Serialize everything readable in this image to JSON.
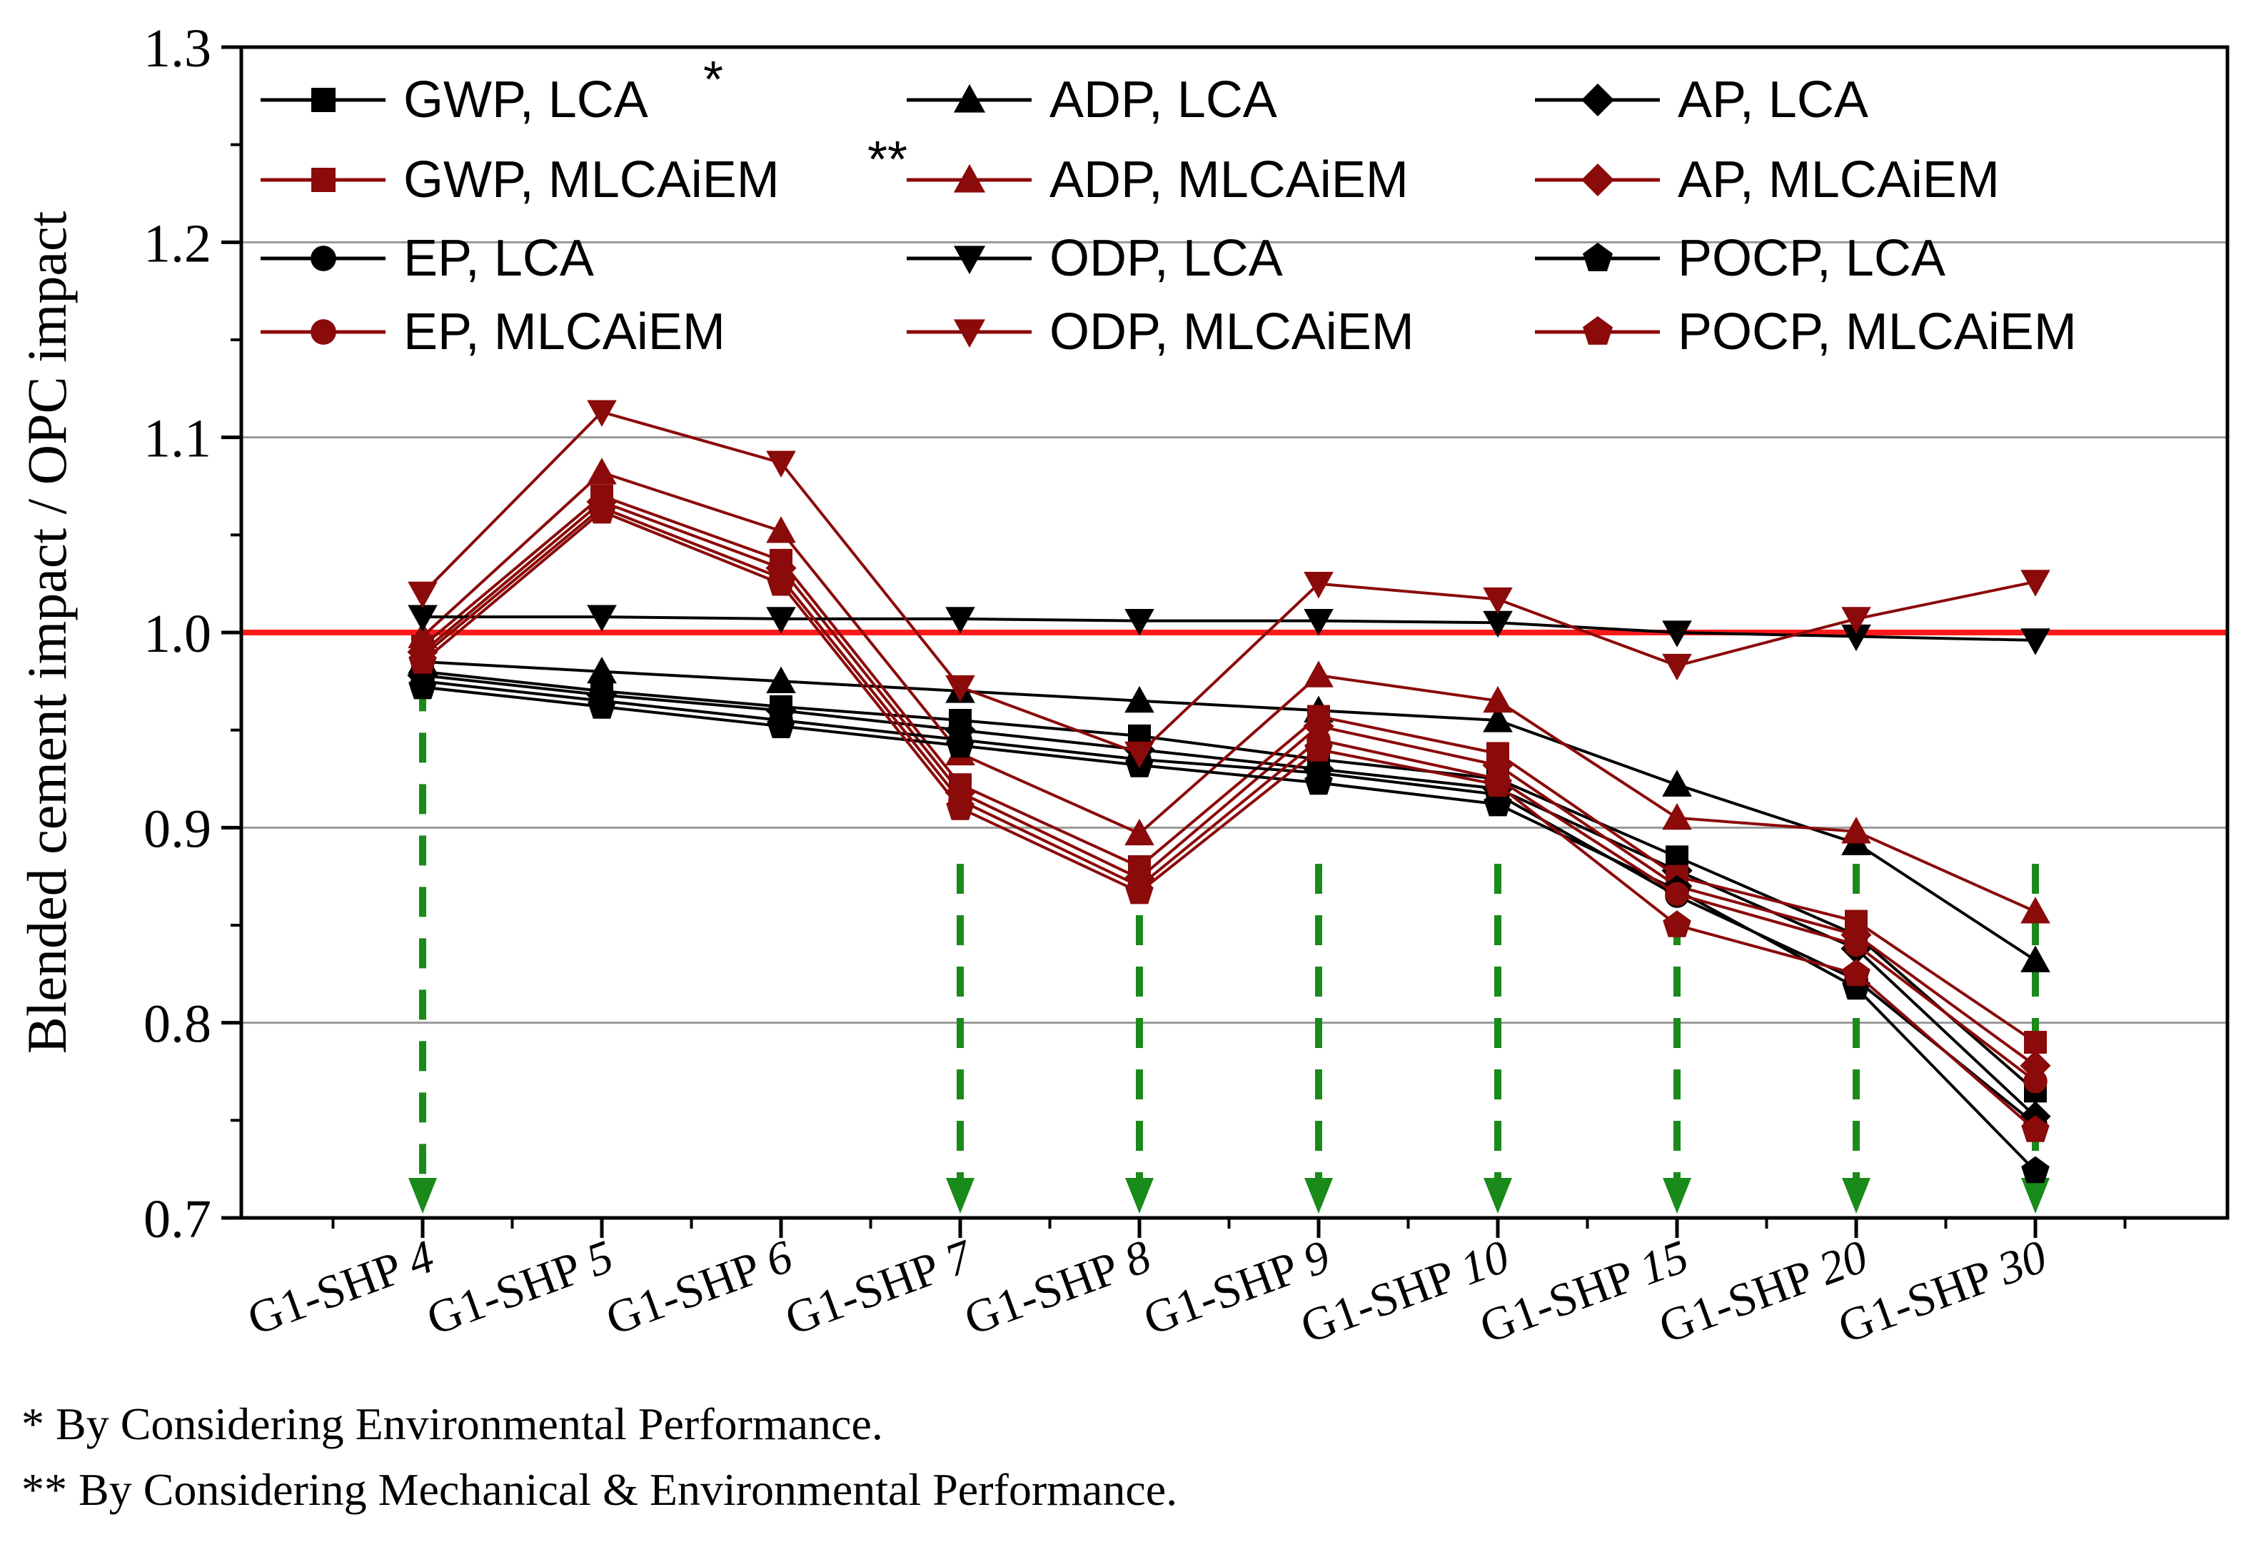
{
  "chart_data": {
    "type": "line",
    "title": "",
    "xlabel": "",
    "ylabel": "Blended cement impact / OPC impact",
    "ylim": [
      0.7,
      1.3
    ],
    "yticks": [
      "0.7",
      "0.8",
      "0.9",
      "1.0",
      "1.1",
      "1.2",
      "1.3"
    ],
    "grid": "horizontal",
    "legend_position": "top",
    "reference_line": {
      "y": 1.0,
      "color": "#ff1a1a"
    },
    "guide_arrows_at": [
      "G1-SHP 4",
      "G1-SHP 7",
      "G1-SHP 8",
      "G1-SHP 9",
      "G1-SHP 10",
      "G1-SHP 15",
      "G1-SHP 20",
      "G1-SHP 30"
    ],
    "categories": [
      "G1-SHP 4",
      "G1-SHP 5",
      "G1-SHP 6",
      "G1-SHP 7",
      "G1-SHP 8",
      "G1-SHP 9",
      "G1-SHP 10",
      "G1-SHP 15",
      "G1-SHP 20",
      "G1-SHP 30"
    ],
    "category_parts": [
      {
        "base": "G1-SHP",
        "num": "4"
      },
      {
        "base": "G1-SHP",
        "num": "5"
      },
      {
        "base": "G1-SHP",
        "num": "6"
      },
      {
        "base": "G1-SHP",
        "num": "7"
      },
      {
        "base": "G1-SHP",
        "num": "8"
      },
      {
        "base": "G1-SHP",
        "num": "9"
      },
      {
        "base": "G1-SHP",
        "num": "10"
      },
      {
        "base": "G1-SHP",
        "num": "15"
      },
      {
        "base": "G1-SHP",
        "num": "20"
      },
      {
        "base": "G1-SHP",
        "num": "30"
      }
    ],
    "series": [
      {
        "name": "GWP, LCA",
        "color": "#000000",
        "marker": "square",
        "note": "*",
        "values": [
          0.98,
          0.97,
          0.962,
          0.955,
          0.947,
          0.935,
          0.925,
          0.885,
          0.845,
          0.765
        ]
      },
      {
        "name": "ADP, LCA",
        "color": "#000000",
        "marker": "triangle-up",
        "values": [
          0.985,
          0.98,
          0.975,
          0.97,
          0.965,
          0.96,
          0.955,
          0.922,
          0.892,
          0.832
        ]
      },
      {
        "name": "AP, LCA",
        "color": "#000000",
        "marker": "diamond",
        "values": [
          0.978,
          0.968,
          0.96,
          0.95,
          0.94,
          0.93,
          0.92,
          0.878,
          0.838,
          0.752
        ]
      },
      {
        "name": "GWP, MLCAiEM",
        "color": "#8b0a0a",
        "marker": "square",
        "note": "**",
        "values": [
          0.993,
          1.07,
          1.037,
          0.922,
          0.88,
          0.957,
          0.938,
          0.875,
          0.852,
          0.79
        ]
      },
      {
        "name": "ADP, MLCAiEM",
        "color": "#8b0a0a",
        "marker": "triangle-up",
        "values": [
          0.998,
          1.082,
          1.052,
          0.938,
          0.897,
          0.978,
          0.965,
          0.905,
          0.898,
          0.857
        ]
      },
      {
        "name": "AP, MLCAiEM",
        "color": "#8b0a0a",
        "marker": "diamond",
        "values": [
          0.99,
          1.067,
          1.033,
          0.918,
          0.874,
          0.952,
          0.932,
          0.87,
          0.845,
          0.778
        ]
      },
      {
        "name": "EP, LCA",
        "color": "#000000",
        "marker": "circle",
        "values": [
          0.975,
          0.965,
          0.955,
          0.945,
          0.935,
          0.928,
          0.917,
          0.865,
          0.822,
          0.748
        ]
      },
      {
        "name": "ODP, LCA",
        "color": "#000000",
        "marker": "triangle-down",
        "values": [
          1.008,
          1.008,
          1.007,
          1.007,
          1.006,
          1.006,
          1.005,
          1.0,
          0.998,
          0.996
        ]
      },
      {
        "name": "POCP, LCA",
        "color": "#000000",
        "marker": "pentagon",
        "values": [
          0.972,
          0.962,
          0.952,
          0.942,
          0.932,
          0.923,
          0.912,
          0.868,
          0.818,
          0.724
        ]
      },
      {
        "name": "EP, MLCAiEM",
        "color": "#8b0a0a",
        "marker": "circle",
        "values": [
          0.988,
          1.064,
          1.028,
          0.914,
          0.87,
          0.945,
          0.925,
          0.866,
          0.84,
          0.77
        ]
      },
      {
        "name": "ODP, MLCAiEM",
        "color": "#8b0a0a",
        "marker": "triangle-down",
        "values": [
          1.02,
          1.113,
          1.087,
          0.972,
          0.938,
          1.025,
          1.017,
          0.983,
          1.007,
          1.026
        ]
      },
      {
        "name": "POCP, MLCAiEM",
        "color": "#8b0a0a",
        "marker": "pentagon",
        "values": [
          0.985,
          1.062,
          1.025,
          0.91,
          0.867,
          0.94,
          0.922,
          0.85,
          0.825,
          0.745
        ]
      }
    ]
  },
  "footnotes": {
    "single": "*   By Considering Environmental Performance.",
    "double": "** By Considering Mechanical & Environmental Performance."
  }
}
